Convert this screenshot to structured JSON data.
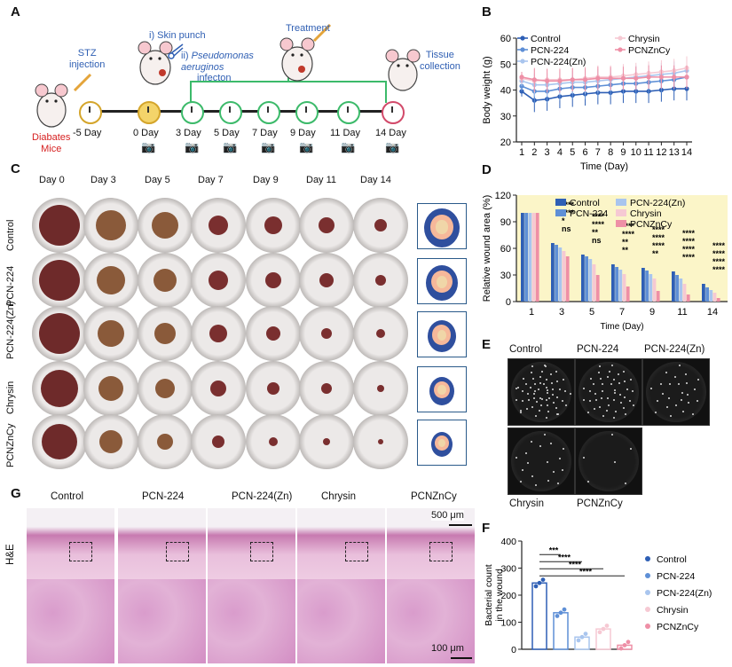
{
  "panels": {
    "A": "A",
    "B": "B",
    "C": "C",
    "D": "D",
    "E": "E",
    "F": "F",
    "G": "G"
  },
  "panelA": {
    "stz": "STZ\ninjection",
    "skin_punch": "i) Skin punch",
    "pseudomonas_prefix": "ii) ",
    "pseudomonas": "Pseudomonas\naeruginos",
    "infection": "infecton",
    "treatment": "Treatment",
    "tissue": "Tissue\ncollection",
    "diabetes": "Diabates\nMice",
    "days": [
      "-5 Day",
      "0 Day",
      "3 Day",
      "5 Day",
      "7 Day",
      "9 Day",
      "11 Day",
      "14 Day"
    ]
  },
  "panelC": {
    "days": [
      "Day 0",
      "Day 3",
      "Day 5",
      "Day 7",
      "Day 9",
      "Day 11",
      "Day 14"
    ],
    "groups": [
      "Control",
      "PCN-224",
      "PCN-224(Zn)",
      "Chrysin",
      "PCNZnCy"
    ]
  },
  "panelE": {
    "labels": [
      "Control",
      "PCN-224",
      "PCN-224(Zn)",
      "Chrysin",
      "PCNZnCy"
    ]
  },
  "panelG": {
    "groups": [
      "Control",
      "PCN-224",
      "PCN-224(Zn)",
      "Chrysin",
      "PCNZnCy"
    ],
    "stain": "H&E",
    "scale_top": "500 μm",
    "scale_bottom": "100 μm"
  },
  "colors": {
    "Control": "#2e5fb5",
    "PCN-224": "#5e8fd6",
    "PCN-224(Zn)": "#a9c5ee",
    "Chrysin": "#f6c9d3",
    "PCNZnCy": "#ee8fa6"
  },
  "chart_data": [
    {
      "id": "B",
      "type": "line",
      "xlabel": "Time (Day)",
      "ylabel": "Body weight (g)",
      "ylim": [
        20,
        60
      ],
      "yticks": [
        20,
        30,
        40,
        50,
        60
      ],
      "x": [
        1,
        2,
        3,
        4,
        5,
        6,
        7,
        8,
        9,
        10,
        11,
        12,
        13,
        14
      ],
      "series": [
        {
          "name": "Control",
          "values": [
            39.5,
            36,
            36.5,
            37.5,
            38,
            38.5,
            39,
            39,
            39.5,
            39.5,
            39.5,
            40,
            40.5,
            40.5
          ]
        },
        {
          "name": "PCN-224",
          "values": [
            41.5,
            39.5,
            39.5,
            40.5,
            41,
            41,
            41.5,
            42,
            42.5,
            42.5,
            43,
            43.5,
            44,
            45
          ]
        },
        {
          "name": "PCN-224(Zn)",
          "values": [
            43.5,
            42,
            42,
            42.5,
            43,
            43,
            43.5,
            44,
            44.5,
            45,
            45.5,
            46,
            46.5,
            47.5
          ]
        },
        {
          "name": "Chrysin",
          "values": [
            44.5,
            43.5,
            44,
            44,
            44,
            44.5,
            45,
            45,
            45.5,
            46,
            46.5,
            47,
            47.5,
            48.5
          ]
        },
        {
          "name": "PCNZnCy",
          "values": [
            45,
            44,
            43.5,
            43.5,
            44,
            44,
            44.5,
            44.5,
            44.5,
            44.5,
            45,
            45,
            45,
            45
          ]
        }
      ]
    },
    {
      "id": "D",
      "type": "bar",
      "xlabel": "Time (Day)",
      "ylabel": "Relative wound area (%)",
      "ylim": [
        0,
        120
      ],
      "yticks": [
        0,
        30,
        60,
        90,
        120
      ],
      "categories": [
        "1",
        "3",
        "5",
        "7",
        "9",
        "11",
        "14"
      ],
      "series": [
        {
          "name": "Control",
          "values": [
            100,
            66,
            53,
            42,
            38,
            34,
            20
          ]
        },
        {
          "name": "PCN-224",
          "values": [
            100,
            64,
            51,
            39,
            35,
            30,
            16
          ]
        },
        {
          "name": "PCN-224(Zn)",
          "values": [
            100,
            61,
            48,
            36,
            31,
            26,
            13
          ]
        },
        {
          "name": "Chrysin",
          "values": [
            100,
            57,
            42,
            31,
            26,
            20,
            10
          ]
        },
        {
          "name": "PCNZnCy",
          "values": [
            100,
            51,
            30,
            17,
            12,
            8,
            4
          ]
        }
      ],
      "annotations": [
        [
          "****",
          "****",
          "*",
          "ns"
        ],
        [
          "****",
          "****",
          "**",
          "ns"
        ],
        [
          "****",
          "****",
          "**",
          "**"
        ],
        [
          "****",
          "****",
          "****",
          "**"
        ],
        [
          "****",
          "****",
          "****",
          "****"
        ],
        [
          "****",
          "****",
          "****",
          "****"
        ]
      ]
    },
    {
      "id": "F",
      "type": "bar",
      "ylabel": "Bacterial count\nin the wound",
      "ylim": [
        0,
        400
      ],
      "yticks": [
        0,
        100,
        200,
        300,
        400
      ],
      "categories": [
        "Control",
        "PCN-224",
        "PCN-224(Zn)",
        "Chrysin",
        "PCNZnCy"
      ],
      "values": [
        245,
        135,
        45,
        75,
        15
      ],
      "significance": [
        "***",
        "****",
        "****",
        "****"
      ]
    }
  ]
}
